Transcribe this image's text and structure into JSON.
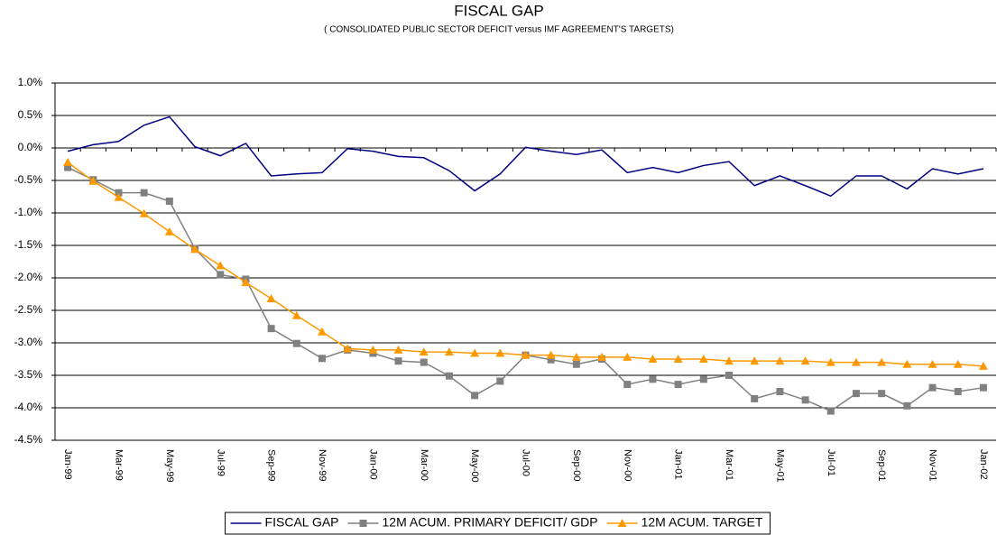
{
  "chart_data": {
    "type": "line",
    "title": "FISCAL GAP",
    "subtitle": "( CONSOLIDATED PUBLIC SECTOR DEFICIT versus IMF AGREEMENT'S TARGETS)",
    "categories": [
      "Jan-99",
      null,
      "Mar-99",
      null,
      "May-99",
      null,
      "Jul-99",
      null,
      "Sep-99",
      null,
      "Nov-99",
      null,
      "Jan-00",
      null,
      "Mar-00",
      null,
      "May-00",
      null,
      "Jul-00",
      null,
      "Sep-00",
      null,
      "Nov-00",
      null,
      "Jan-01",
      null,
      "Mar-01",
      null,
      "May-01",
      null,
      "Jul-01",
      null,
      "Sep-01",
      null,
      "Nov-01",
      null,
      "Jan-02"
    ],
    "series": [
      {
        "name": "FISCAL GAP",
        "color": "#000080",
        "marker": "none",
        "values": [
          -0.05,
          0.05,
          0.1,
          0.35,
          0.48,
          0.02,
          -0.12,
          0.07,
          -0.43,
          -0.4,
          -0.38,
          -0.01,
          -0.05,
          -0.13,
          -0.15,
          -0.35,
          -0.66,
          -0.4,
          0.01,
          -0.05,
          -0.1,
          -0.03,
          -0.38,
          -0.3,
          -0.38,
          -0.27,
          -0.21,
          -0.58,
          -0.43,
          -0.58,
          -0.74,
          -0.43,
          -0.43,
          -0.63,
          -0.32,
          -0.4,
          -0.32
        ]
      },
      {
        "name": "12M ACUM. PRIMARY DEFICIT/ GDP",
        "color": "#808080",
        "marker": "square",
        "values": [
          -0.3,
          -0.49,
          -0.69,
          -0.69,
          -0.82,
          -1.55,
          -1.95,
          -2.02,
          -2.78,
          -3.01,
          -3.24,
          -3.11,
          -3.16,
          -3.28,
          -3.3,
          -3.51,
          -3.81,
          -3.59,
          -3.19,
          -3.26,
          -3.33,
          -3.25,
          -3.64,
          -3.56,
          -3.64,
          -3.56,
          -3.5,
          -3.86,
          -3.75,
          -3.88,
          -4.05,
          -3.78,
          -3.78,
          -3.97,
          -3.69,
          -3.75,
          -3.69
        ]
      },
      {
        "name": "12M ACUM. TARGET",
        "color": "#ff9900",
        "marker": "triangle",
        "values": [
          -0.22,
          -0.51,
          -0.76,
          -1.01,
          -1.29,
          -1.56,
          -1.81,
          -2.07,
          -2.32,
          -2.58,
          -2.83,
          -3.09,
          -3.11,
          -3.11,
          -3.14,
          -3.14,
          -3.16,
          -3.16,
          -3.19,
          -3.19,
          -3.22,
          -3.22,
          -3.22,
          -3.25,
          -3.25,
          -3.25,
          -3.28,
          -3.28,
          -3.28,
          -3.28,
          -3.3,
          -3.3,
          -3.3,
          -3.33,
          -3.33,
          -3.33,
          -3.36
        ]
      }
    ],
    "ylim": [
      -4.5,
      1.0
    ],
    "yticks": [
      {
        "value": 1.0,
        "label": "1.0%"
      },
      {
        "value": 0.5,
        "label": "0.5%"
      },
      {
        "value": 0,
        "label": "0.0%"
      },
      {
        "value": -0.5,
        "label": "-0.5%"
      },
      {
        "value": -1.0,
        "label": "-1.0%"
      },
      {
        "value": -1.5,
        "label": "-1.5%"
      },
      {
        "value": -2.0,
        "label": "-2.0%"
      },
      {
        "value": -2.5,
        "label": "-2.5%"
      },
      {
        "value": -3.0,
        "label": "-3.0%"
      },
      {
        "value": -3.5,
        "label": "-3.5%"
      },
      {
        "value": -4.0,
        "label": "-4.0%"
      },
      {
        "value": -4.5,
        "label": "-4.5%"
      }
    ],
    "grid": true,
    "legend": "bottom"
  }
}
